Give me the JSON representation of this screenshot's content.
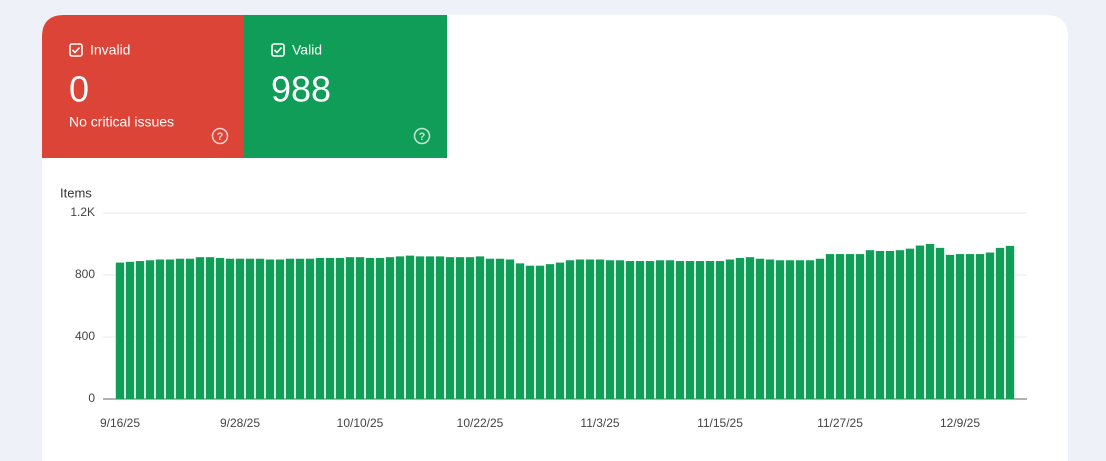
{
  "cards": [
    {
      "label": "Invalid",
      "value": 0,
      "note": "No critical issues",
      "color": "#db4437"
    },
    {
      "label": "Valid",
      "value": 988,
      "color": "#0f9d58"
    }
  ],
  "chart_data": {
    "type": "bar",
    "y_label": "Items",
    "categories": [
      "9/16/25",
      null,
      null,
      null,
      null,
      null,
      null,
      null,
      null,
      null,
      null,
      null,
      "9/28/25",
      null,
      null,
      null,
      null,
      null,
      null,
      null,
      null,
      null,
      null,
      null,
      "10/10/25",
      null,
      null,
      null,
      null,
      null,
      null,
      null,
      null,
      null,
      null,
      null,
      "10/22/25",
      null,
      null,
      null,
      null,
      null,
      null,
      null,
      null,
      null,
      null,
      null,
      "11/3/25",
      null,
      null,
      null,
      null,
      null,
      null,
      null,
      null,
      null,
      null,
      null,
      "11/15/25",
      null,
      null,
      null,
      null,
      null,
      null,
      null,
      null,
      null,
      null,
      null,
      "11/27/25",
      null,
      null,
      null,
      null,
      null,
      null,
      null,
      null,
      null,
      null,
      null,
      "12/9/25",
      null,
      null,
      null,
      null,
      null
    ],
    "values": [
      880,
      885,
      890,
      895,
      900,
      900,
      905,
      905,
      915,
      915,
      910,
      905,
      905,
      905,
      905,
      900,
      900,
      905,
      905,
      905,
      910,
      910,
      910,
      915,
      915,
      910,
      910,
      915,
      920,
      925,
      920,
      920,
      920,
      915,
      915,
      915,
      920,
      905,
      905,
      900,
      875,
      860,
      860,
      870,
      880,
      895,
      900,
      900,
      900,
      895,
      895,
      890,
      890,
      890,
      895,
      895,
      890,
      890,
      890,
      890,
      890,
      900,
      910,
      915,
      905,
      900,
      895,
      895,
      895,
      895,
      905,
      935,
      935,
      935,
      935,
      960,
      955,
      955,
      960,
      970,
      990,
      1000,
      975,
      930,
      935,
      935,
      935,
      945,
      975,
      988
    ],
    "color": "#0f9d58",
    "ylim": [
      0,
      1200
    ],
    "yticks": [
      0,
      400,
      800,
      {
        "value": 1200,
        "label": "1.2K"
      }
    ],
    "grid": true
  }
}
